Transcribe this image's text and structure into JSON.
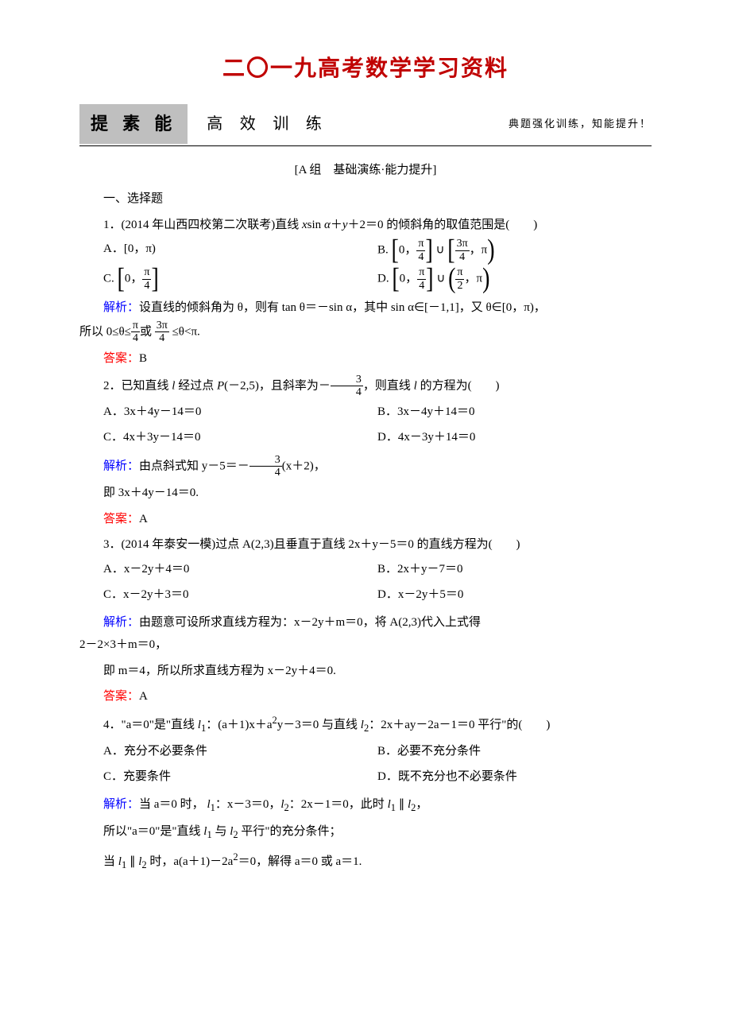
{
  "title": "二〇一九高考数学学习资料",
  "banner": {
    "left": "提 素 能",
    "mid": "高 效 训 练",
    "right": "典题强化训练，知能提升！"
  },
  "group": "[A 组　基础演练·能力提升]",
  "section1": "一、选择题",
  "q1": {
    "stem_a": "1．(2014 年山西四校第二次联考)直线 ",
    "stem_b": "sin ",
    "stem_c": "＋2＝0 的倾斜角的取值范围是(　　)",
    "optA": "A．[0，π)",
    "optB_pre": "B.",
    "optC_pre": "C.",
    "optD_pre": "D.",
    "sol_a": "解析：",
    "sol_b": "设直线的倾斜角为 θ，则有 tan θ＝－sin α，其中 sin α∈[－1,1]，又 θ∈[0，π)，",
    "sol_c": "所以 0≤θ≤",
    "sol_d": "或",
    "sol_e": "≤θ<π.",
    "ans_a": "答案：",
    "ans_b": "B"
  },
  "q2": {
    "stem_a": "2．已知直线 ",
    "stem_b": " 经过点 ",
    "stem_c": "(－2,5)，且斜率为－",
    "stem_d": "，则直线 ",
    "stem_e": " 的方程为(　　)",
    "optA": "A．3x＋4y－14＝0",
    "optB": "B．3x－4y＋14＝0",
    "optC": "C．4x＋3y－14＝0",
    "optD": "D．4x－3y＋14＝0",
    "sol_a": "解析：",
    "sol_b": "由点斜式知 y－5＝－",
    "sol_c": "(x＋2)，",
    "sol_d": "即 3x＋4y－14＝0.",
    "ans_a": "答案：",
    "ans_b": "A"
  },
  "q3": {
    "stem": "3．(2014 年泰安一模)过点 A(2,3)且垂直于直线 2x＋y－5＝0 的直线方程为(　　)",
    "optA": "A．x－2y＋4＝0",
    "optB": "B．2x＋y－7＝0",
    "optC": "C．x－2y＋3＝0",
    "optD": "D．x－2y＋5＝0",
    "sol_a": "解析：",
    "sol_b": "由题意可设所求直线方程为：x－2y＋m＝0，将 A(2,3)代入上式得",
    "sol_c": "2－2×3＋m＝0，",
    "sol_d": "即 m＝4，所以所求直线方程为 x－2y＋4＝0.",
    "ans_a": "答案：",
    "ans_b": "A"
  },
  "q4": {
    "stem_a": "4．\"a＝0\"是\"直线 ",
    "stem_b": "：(a＋1)x＋a",
    "stem_c": "y－3＝0 与直线 ",
    "stem_d": "：2x＋ay－2a－1＝0 平行\"的(　　)",
    "optA": "A．充分不必要条件",
    "optB": "B．必要不充分条件",
    "optC": "C．充要条件",
    "optD": "D．既不充分也不必要条件",
    "sol_a": "解析：",
    "sol_b": "当 a＝0 时，",
    "sol_c": "：x－3＝0，",
    "sol_d": "：2x－1＝0，此时 ",
    "sol_e": "所以\"a＝0\"是\"直线 ",
    "sol_f": " 与 ",
    "sol_g": " 平行\"的充分条件；",
    "sol_h": "当 ",
    "sol_i": " 时，a(a＋1)－2a",
    "sol_j": "＝0，解得 a＝0 或 a＝1."
  },
  "sym": {
    "pi": "π",
    "pi4n": "π",
    "pi4d": "4",
    "_3pi4n": "3π",
    "_3pi4d": "4",
    "pi2n": "π",
    "pi2d": "2",
    "_34n": "3",
    "_34d": "4",
    "l": "l",
    "l1": "l",
    "l2": "l",
    "sub1": "1",
    "sub2": "2",
    "sup2": "2",
    "x": "x",
    "y": "y",
    "P": "P",
    "alpha": "α",
    "parallel": "∥",
    "cup": "∪"
  }
}
